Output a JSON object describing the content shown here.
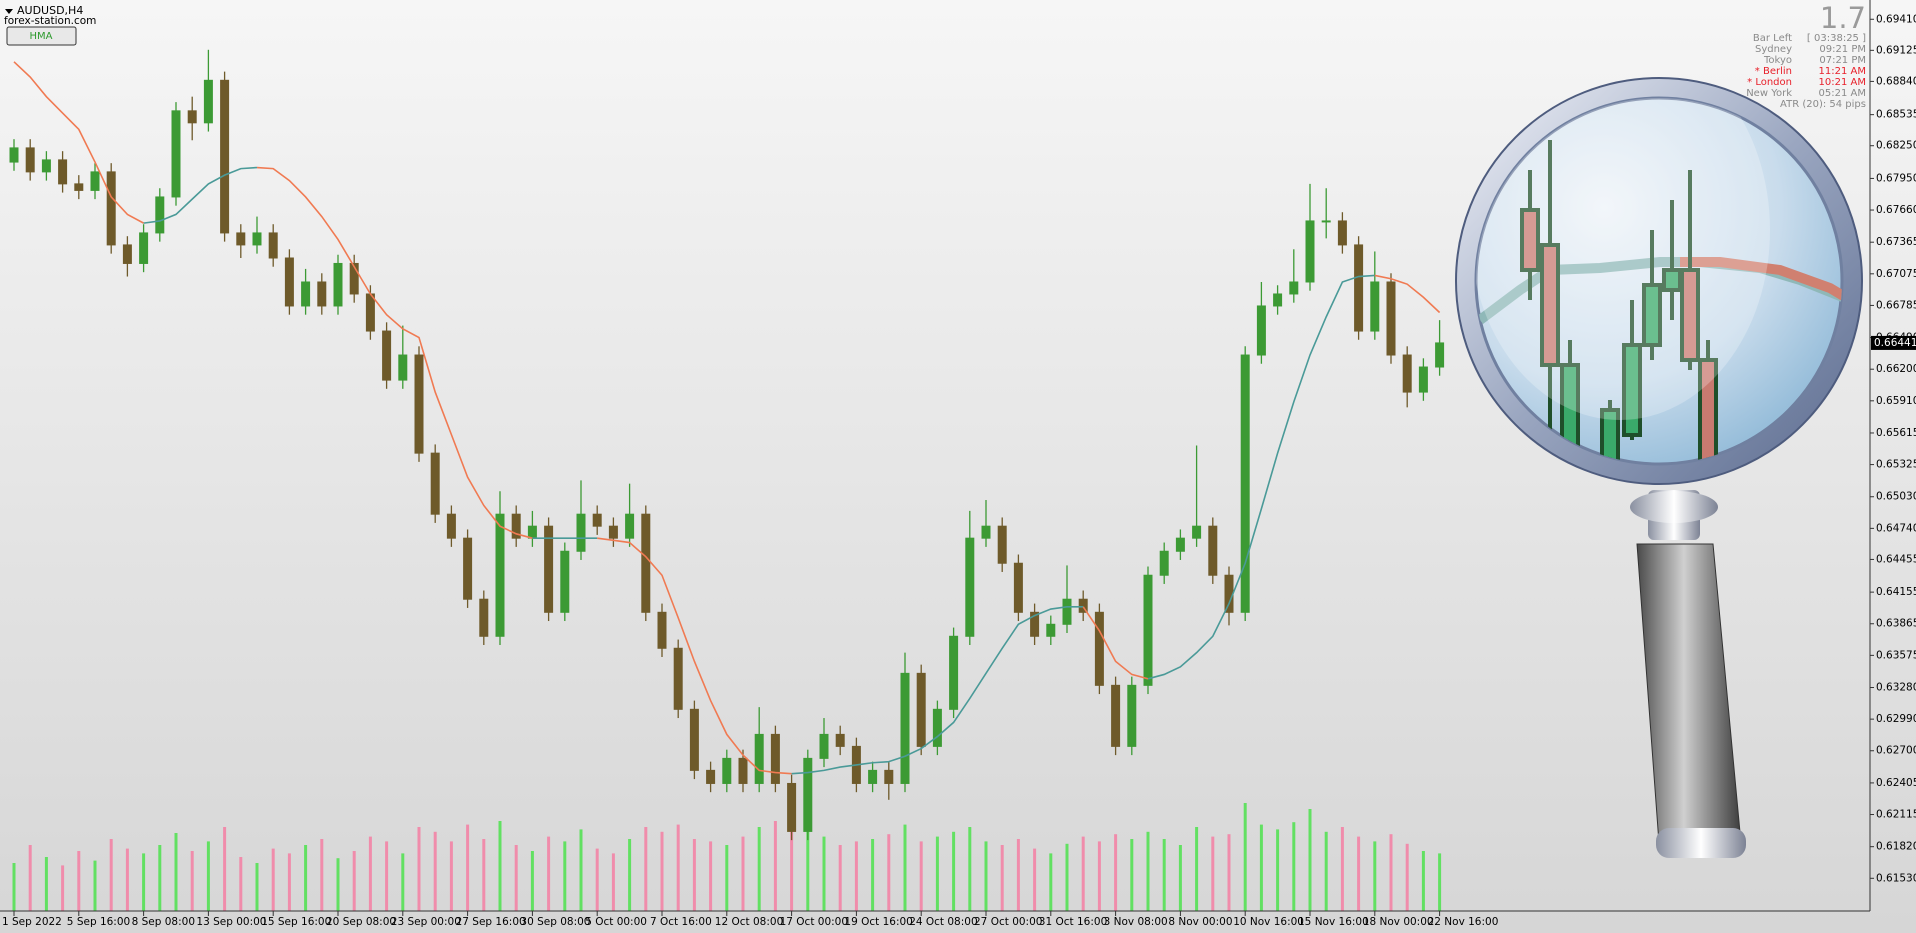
{
  "symbol_label": "AUDUSD,H4",
  "watermark": "forex-station.com",
  "button": "HMA",
  "info_panel": {
    "big": "1.7",
    "rows": [
      {
        "label": "Bar Left",
        "value": "[ 03:38:25 ]",
        "color": "#8a8a8a"
      },
      {
        "label": "Sydney",
        "value": "09:21 PM",
        "color": "#8a8a8a"
      },
      {
        "label": "Tokyo",
        "value": "07:21 PM",
        "color": "#8a8a8a"
      },
      {
        "label": "* Berlin",
        "value": "11:21 AM",
        "color": "#e8202a"
      },
      {
        "label": "* London",
        "value": "10:21 AM",
        "color": "#e8202a"
      },
      {
        "label": "New York",
        "value": "05:21 AM",
        "color": "#8a8a8a"
      }
    ],
    "atr": "ATR (20): 54 pips"
  },
  "chart_data": {
    "type": "candlestick",
    "up_color": "#3c9a34",
    "down_color": "#6e5a2a",
    "categories": [
      "1 Sep 2022",
      null,
      null,
      null,
      "5 Sep 16:00",
      null,
      null,
      null,
      "8 Sep 08:00",
      null,
      null,
      null,
      "13 Sep 00:00",
      null,
      null,
      null,
      "15 Sep 16:00",
      null,
      null,
      null,
      "20 Sep 08:00",
      null,
      null,
      null,
      "23 Sep 00:00",
      null,
      null,
      null,
      "27 Sep 16:00",
      null,
      null,
      null,
      "30 Sep 08:00",
      null,
      null,
      null,
      "5 Oct 00:00",
      null,
      null,
      null,
      "7 Oct 16:00",
      null,
      null,
      null,
      "12 Oct 08:00",
      null,
      null,
      null,
      "17 Oct 00:00",
      null,
      null,
      null,
      "19 Oct 16:00",
      null,
      null,
      null,
      "24 Oct 08:00",
      null,
      null,
      null,
      "27 Oct 00:00",
      null,
      null,
      null,
      "31 Oct 16:00",
      null,
      null,
      null,
      "3 Nov 08:00",
      null,
      null,
      null,
      "8 Nov 00:00",
      null,
      null,
      null,
      "10 Nov 16:00",
      null,
      null,
      null,
      "15 Nov 16:00",
      null,
      null,
      null,
      "18 Nov 00:00",
      null,
      null,
      null,
      "22 Nov 16:00"
    ],
    "open": [
      0.681,
      0.6823,
      0.6801,
      0.6812,
      0.679,
      0.6784,
      0.6801,
      0.6734,
      0.6717,
      0.6745,
      0.6778,
      0.6857,
      0.6846,
      0.6885,
      0.6745,
      0.6734,
      0.6745,
      0.6722,
      0.6678,
      0.67,
      0.6678,
      0.6717,
      0.6689,
      0.6655,
      0.661,
      0.6633,
      0.6543,
      0.6487,
      0.6465,
      0.6409,
      0.6375,
      0.6487,
      0.6465,
      0.6476,
      0.6397,
      0.6453,
      0.6487,
      0.6476,
      0.6465,
      0.6487,
      0.6397,
      0.6364,
      0.6308,
      0.6252,
      0.624,
      0.6263,
      0.624,
      0.6285,
      0.624,
      0.6196,
      0.6263,
      0.6285,
      0.6274,
      0.624,
      0.6252,
      0.624,
      0.6341,
      0.6274,
      0.6308,
      0.6375,
      0.6465,
      0.6476,
      0.6442,
      0.6397,
      0.6375,
      0.6386,
      0.6409,
      0.6397,
      0.633,
      0.6274,
      0.633,
      0.6431,
      0.6453,
      0.6465,
      0.6476,
      0.6431,
      0.6397,
      0.6633,
      0.6678,
      0.6689,
      0.67,
      0.6756,
      0.6756,
      0.6734,
      0.6655,
      0.67,
      0.6633,
      0.6599,
      0.6622
    ],
    "high": [
      0.6831,
      0.6831,
      0.682,
      0.682,
      0.6798,
      0.6809,
      0.6809,
      0.6742,
      0.6753,
      0.6786,
      0.6865,
      0.687,
      0.6913,
      0.6893,
      0.6753,
      0.676,
      0.6753,
      0.673,
      0.6712,
      0.6708,
      0.6725,
      0.6725,
      0.6697,
      0.6663,
      0.666,
      0.6641,
      0.6551,
      0.6495,
      0.6473,
      0.6417,
      0.6508,
      0.6495,
      0.649,
      0.6484,
      0.6461,
      0.6518,
      0.6495,
      0.6484,
      0.6515,
      0.6495,
      0.6405,
      0.6372,
      0.6316,
      0.626,
      0.6271,
      0.6271,
      0.631,
      0.6293,
      0.6248,
      0.6271,
      0.63,
      0.6293,
      0.6282,
      0.626,
      0.626,
      0.636,
      0.6349,
      0.6316,
      0.6383,
      0.649,
      0.65,
      0.6484,
      0.645,
      0.6405,
      0.6394,
      0.644,
      0.6417,
      0.6405,
      0.6338,
      0.6338,
      0.6439,
      0.6461,
      0.6473,
      0.655,
      0.6484,
      0.6439,
      0.6641,
      0.67,
      0.6697,
      0.673,
      0.679,
      0.6786,
      0.6764,
      0.6742,
      0.6728,
      0.6708,
      0.6641,
      0.663,
      0.6665
    ],
    "low": [
      0.6802,
      0.6793,
      0.6793,
      0.6782,
      0.6776,
      0.6776,
      0.6726,
      0.6705,
      0.6709,
      0.6737,
      0.677,
      0.683,
      0.6838,
      0.6737,
      0.6722,
      0.6726,
      0.6714,
      0.667,
      0.667,
      0.667,
      0.667,
      0.6681,
      0.6647,
      0.6602,
      0.6602,
      0.6535,
      0.6479,
      0.6457,
      0.6401,
      0.6367,
      0.6367,
      0.6457,
      0.6457,
      0.6389,
      0.6389,
      0.6445,
      0.6468,
      0.6457,
      0.6457,
      0.6389,
      0.6356,
      0.63,
      0.6244,
      0.6232,
      0.6232,
      0.6232,
      0.6232,
      0.6232,
      0.6188,
      0.6188,
      0.6255,
      0.6266,
      0.6232,
      0.6232,
      0.6225,
      0.6232,
      0.6266,
      0.6266,
      0.63,
      0.6367,
      0.6457,
      0.6434,
      0.6389,
      0.6367,
      0.6367,
      0.6378,
      0.6389,
      0.6322,
      0.6266,
      0.6266,
      0.6322,
      0.6423,
      0.6445,
      0.6457,
      0.6423,
      0.6385,
      0.6389,
      0.6625,
      0.667,
      0.6681,
      0.6692,
      0.674,
      0.6726,
      0.6647,
      0.6647,
      0.6625,
      0.6585,
      0.6591,
      0.6614
    ],
    "close": [
      0.6823,
      0.6801,
      0.6812,
      0.679,
      0.6784,
      0.6801,
      0.6734,
      0.6717,
      0.6745,
      0.6778,
      0.6857,
      0.6846,
      0.6885,
      0.6745,
      0.6734,
      0.6745,
      0.6722,
      0.6678,
      0.67,
      0.6678,
      0.6717,
      0.6689,
      0.6655,
      0.661,
      0.6633,
      0.6543,
      0.6487,
      0.6465,
      0.6409,
      0.6375,
      0.6487,
      0.6465,
      0.6476,
      0.6397,
      0.6453,
      0.6487,
      0.6476,
      0.6465,
      0.6487,
      0.6397,
      0.6364,
      0.6308,
      0.6252,
      0.624,
      0.6263,
      0.624,
      0.6285,
      0.624,
      0.6196,
      0.6263,
      0.6285,
      0.6274,
      0.624,
      0.6252,
      0.624,
      0.6341,
      0.6274,
      0.6308,
      0.6375,
      0.6465,
      0.6476,
      0.6442,
      0.6397,
      0.6375,
      0.6386,
      0.6409,
      0.6397,
      0.633,
      0.6274,
      0.633,
      0.6431,
      0.6453,
      0.6465,
      0.6476,
      0.6431,
      0.6397,
      0.6633,
      0.6678,
      0.6689,
      0.67,
      0.6756,
      0.6756,
      0.6734,
      0.6655,
      0.67,
      0.6633,
      0.6599,
      0.6622,
      0.66441
    ],
    "hma": {
      "up_color": "#4a9a98",
      "down_color": "#f07a52",
      "values": [
        0.6902,
        0.6888,
        0.687,
        0.6855,
        0.684,
        0.681,
        0.6778,
        0.6762,
        0.6754,
        0.6756,
        0.6762,
        0.6776,
        0.679,
        0.6798,
        0.6804,
        0.6805,
        0.6804,
        0.6793,
        0.6778,
        0.676,
        0.6739,
        0.6714,
        0.6689,
        0.667,
        0.6657,
        0.6649,
        0.6599,
        0.656,
        0.6521,
        0.6495,
        0.6476,
        0.6469,
        0.6465,
        0.6465,
        0.6465,
        0.6465,
        0.6465,
        0.6463,
        0.6461,
        0.6448,
        0.6431,
        0.6392,
        0.6352,
        0.6316,
        0.6285,
        0.6266,
        0.6252,
        0.625,
        0.6249,
        0.625,
        0.6252,
        0.6255,
        0.6257,
        0.6259,
        0.626,
        0.6265,
        0.6272,
        0.6283,
        0.6296,
        0.6318,
        0.6341,
        0.6364,
        0.6386,
        0.6394,
        0.64,
        0.6402,
        0.6402,
        0.638,
        0.6352,
        0.634,
        0.6336,
        0.634,
        0.6347,
        0.636,
        0.6375,
        0.6405,
        0.6442,
        0.6492,
        0.6543,
        0.659,
        0.6633,
        0.6668,
        0.67,
        0.6705,
        0.6706,
        0.6703,
        0.6698,
        0.6686,
        0.6672
      ]
    },
    "volume": {
      "up_color": "#62e062",
      "down_color": "#f08cab",
      "vlim": [
        0,
        100
      ],
      "values": [
        40,
        55,
        45,
        38,
        50,
        42,
        60,
        52,
        48,
        55,
        65,
        50,
        58,
        70,
        45,
        40,
        52,
        48,
        55,
        60,
        44,
        50,
        62,
        58,
        48,
        70,
        66,
        58,
        72,
        60,
        75,
        55,
        50,
        62,
        58,
        68,
        52,
        48,
        60,
        70,
        66,
        72,
        60,
        58,
        55,
        62,
        70,
        75,
        80,
        68,
        62,
        55,
        58,
        60,
        64,
        72,
        58,
        62,
        66,
        70,
        58,
        55,
        60,
        52,
        48,
        56,
        62,
        58,
        64,
        60,
        66,
        60,
        55,
        70,
        62,
        64,
        90,
        72,
        68,
        74,
        85,
        66,
        70,
        62,
        58,
        64,
        56,
        50,
        48
      ]
    },
    "ylim": [
      0.6123,
      0.6955
    ],
    "yticks": [
      {
        "value": 0.6941,
        "label": "0.69410"
      },
      0.69125,
      {
        "value": 0.6884,
        "label": "0.68840"
      },
      0.68535,
      {
        "value": 0.6825,
        "label": "0.68250"
      },
      {
        "value": 0.6795,
        "label": "0.67950"
      },
      {
        "value": 0.6766,
        "label": "0.67660"
      },
      0.67365,
      0.67075,
      0.66785,
      {
        "value": 0.6649,
        "label": "0.66490"
      },
      {
        "value": 0.662,
        "label": "0.66200"
      },
      {
        "value": 0.6591,
        "label": "0.65910"
      },
      0.65615,
      0.65325,
      {
        "value": 0.6503,
        "label": "0.65030"
      },
      {
        "value": 0.6474,
        "label": "0.64740"
      },
      0.64455,
      0.64155,
      0.63865,
      0.63575,
      {
        "value": 0.6328,
        "label": "0.63280"
      },
      {
        "value": 0.6299,
        "label": "0.62990"
      },
      {
        "value": 0.627,
        "label": "0.62700"
      },
      0.62405,
      0.62115,
      {
        "value": 0.6182,
        "label": "0.61820"
      },
      {
        "value": 0.6153,
        "label": "0.61530"
      }
    ]
  }
}
